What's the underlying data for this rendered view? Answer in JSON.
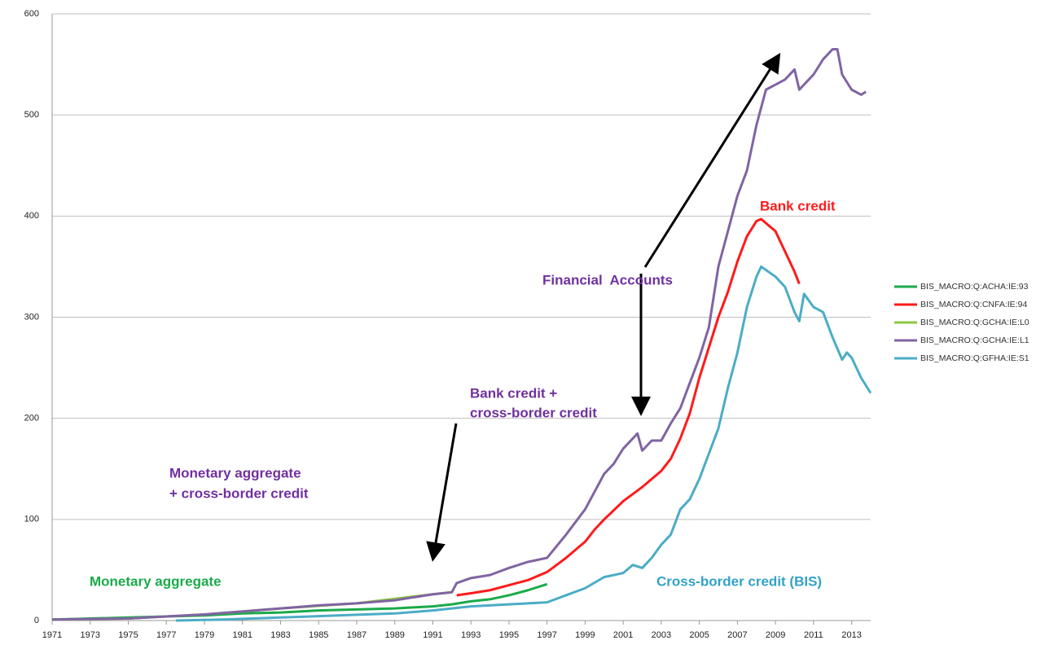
{
  "chart_data": {
    "type": "line",
    "xlim": [
      1971,
      2014
    ],
    "xticks": [
      1971,
      1973,
      1975,
      1977,
      1979,
      1981,
      1983,
      1985,
      1987,
      1989,
      1991,
      1993,
      1995,
      1997,
      1999,
      2001,
      2003,
      2005,
      2007,
      2009,
      2011,
      2013
    ],
    "ylim": [
      0,
      600
    ],
    "yticks": [
      0,
      100,
      200,
      300,
      400,
      500,
      600
    ],
    "grid": true,
    "legend": "right",
    "series": [
      {
        "name": "BIS_MACRO:Q:ACHA:IE:93",
        "color": "#1aaa4a",
        "x": [
          1971,
          1975,
          1979,
          1981,
          1983,
          1985,
          1987,
          1989,
          1991,
          1992,
          1993,
          1994,
          1995,
          1996,
          1997
        ],
        "values": [
          1,
          3,
          5,
          7,
          8,
          10,
          11,
          12,
          14,
          16,
          19,
          21,
          25,
          30,
          36
        ]
      },
      {
        "name": "BIS_MACRO:Q:CNFA:IE:94",
        "color": "#ff1a1a",
        "x": [
          1992.25,
          1993,
          1994,
          1995,
          1996,
          1997,
          1998,
          1999,
          1999.5,
          2000,
          2001,
          2002,
          2002.5,
          2003,
          2003.5,
          2004,
          2004.5,
          2005,
          2005.5,
          2006,
          2006.5,
          2007,
          2007.5,
          2008,
          2008.25,
          2009,
          2009.5,
          2010,
          2010.25
        ],
        "values": [
          25,
          27,
          30,
          35,
          40,
          48,
          62,
          78,
          90,
          100,
          118,
          132,
          140,
          148,
          160,
          180,
          205,
          240,
          270,
          300,
          325,
          355,
          380,
          395,
          397,
          385,
          365,
          345,
          333
        ]
      },
      {
        "name": "BIS_MACRO:Q:GCHA:IE:L0",
        "color": "#8cc63f",
        "x": [
          1971,
          1975,
          1979,
          1983,
          1987,
          1991,
          1992
        ],
        "values": [
          1,
          2,
          6,
          12,
          17,
          26,
          28
        ]
      },
      {
        "name": "BIS_MACRO:Q:GCHA:IE:L1",
        "color": "#8064a2",
        "x": [
          1971,
          1975,
          1977,
          1979,
          1981,
          1983,
          1985,
          1987,
          1989,
          1991,
          1992,
          1992.25,
          1993,
          1994,
          1995,
          1996,
          1997,
          1998,
          1999,
          2000,
          2000.5,
          2001,
          2001.75,
          2002,
          2002.5,
          2003,
          2003.5,
          2004,
          2004.5,
          2005,
          2005.5,
          2006,
          2006.5,
          2007,
          2007.5,
          2008,
          2008.5,
          2009,
          2009.5,
          2010,
          2010.25,
          2010.75,
          2011,
          2011.5,
          2012,
          2012.25,
          2012.5,
          2013,
          2013.5,
          2013.75
        ],
        "values": [
          1,
          2,
          4,
          6,
          9,
          12,
          15,
          17,
          20,
          26,
          28,
          37,
          42,
          45,
          52,
          58,
          62,
          85,
          110,
          145,
          155,
          170,
          185,
          168,
          178,
          178,
          195,
          210,
          235,
          260,
          290,
          350,
          385,
          420,
          445,
          490,
          525,
          530,
          535,
          545,
          525,
          535,
          540,
          555,
          565,
          565,
          540,
          525,
          520,
          523
        ]
      },
      {
        "name": "BIS_MACRO:Q:GFHA:IE:S1",
        "color": "#4bacc6",
        "x": [
          1977.5,
          1980,
          1983,
          1986,
          1989,
          1991,
          1992,
          1993,
          1994,
          1995,
          1996,
          1997,
          1998,
          1999,
          2000,
          2001,
          2001.5,
          2002,
          2002.5,
          2003,
          2003.5,
          2004,
          2004.5,
          2005,
          2005.5,
          2006,
          2006.5,
          2007,
          2007.5,
          2008,
          2008.25,
          2009,
          2009.5,
          2010,
          2010.25,
          2010.5,
          2011,
          2011.5,
          2012,
          2012.5,
          2012.75,
          2013,
          2013.5,
          2014
        ],
        "values": [
          0,
          1,
          3,
          5,
          7,
          10,
          12,
          14,
          15,
          16,
          17,
          18,
          25,
          32,
          43,
          47,
          55,
          52,
          62,
          75,
          85,
          110,
          120,
          140,
          165,
          190,
          230,
          265,
          310,
          340,
          350,
          340,
          330,
          305,
          296,
          323,
          310,
          305,
          280,
          258,
          265,
          260,
          240,
          225
        ]
      }
    ],
    "annotations": [
      {
        "text": "Monetary aggregate",
        "color": "#1aaa4a"
      },
      {
        "text": "Monetary aggregate",
        "color": "#7030a0"
      },
      {
        "text": "+ cross-border credit",
        "color": "#7030a0"
      },
      {
        "text": "Bank credit +",
        "color": "#7030a0"
      },
      {
        "text": "cross-border credit",
        "color": "#7030a0"
      },
      {
        "text": "Financial  Accounts",
        "color": "#7030a0"
      },
      {
        "text": "Bank credit",
        "color": "#ff1a1a"
      },
      {
        "text": "Cross-border credit (BIS)",
        "color": "#31a2c8"
      }
    ]
  }
}
